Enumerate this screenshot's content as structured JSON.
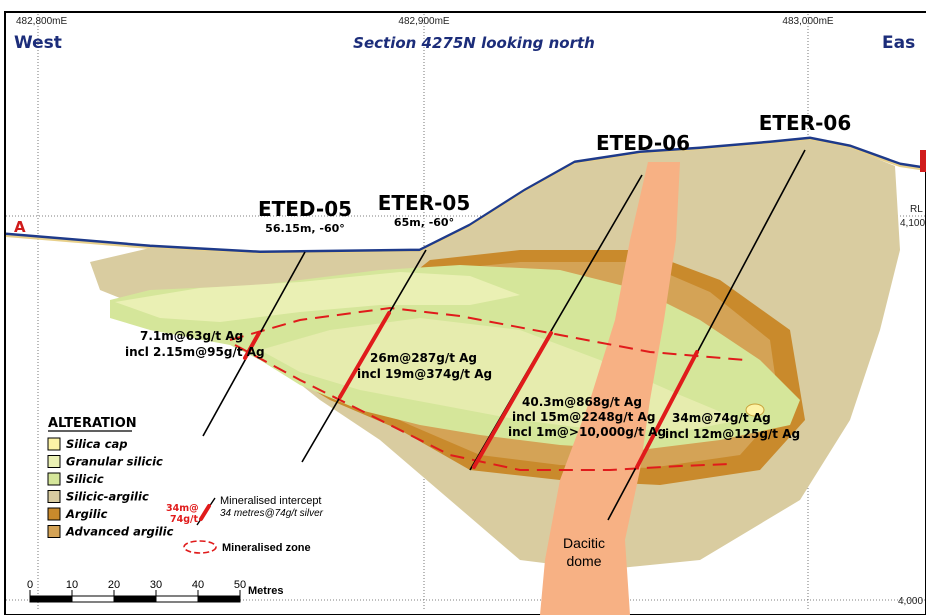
{
  "header": {
    "coord_left": "482,800mE",
    "coord_mid": "482,900mE",
    "coord_right": "483,000mE",
    "west": "West",
    "east": "Eas",
    "title": "Section 4275N looking north",
    "section_a": "A"
  },
  "rl": {
    "label": "RL",
    "upper": "4,100",
    "lower": "4,000"
  },
  "holes": [
    {
      "name": "ETED-05",
      "detail": "56.15m, -60°"
    },
    {
      "name": "ETER-05",
      "detail": "65m, -60°"
    },
    {
      "name": "ETED-06",
      "detail": ""
    },
    {
      "name": "ETER-06",
      "detail": ""
    }
  ],
  "intercepts": [
    {
      "line1": "7.1m@63g/t Ag",
      "line2": "incl 2.15m@95g/t Ag",
      "line3": ""
    },
    {
      "line1": "26m@287g/t Ag",
      "line2": "incl 19m@374g/t Ag",
      "line3": ""
    },
    {
      "line1": "40.3m@868g/t Ag",
      "line2": "incl 15m@2248g/t Ag",
      "line3": "incl 1m@>10,000g/t Ag"
    },
    {
      "line1": "34m@74g/t Ag",
      "line2": "incl 12m@125g/t Ag",
      "line3": ""
    }
  ],
  "dome_label": [
    "Dacitic",
    "dome"
  ],
  "legend": {
    "title": "ALTERATION",
    "items": [
      {
        "label": "Silica cap",
        "color": "#fdf3a6"
      },
      {
        "label": "Granular silicic",
        "color": "#eaf0b4"
      },
      {
        "label": "Silicic",
        "color": "#d5e69a"
      },
      {
        "label": "Silicic-argilic",
        "color": "#d9cca0"
      },
      {
        "label": "Argilic",
        "color": "#c98a2c"
      },
      {
        "label": "Advanced argilic",
        "color": "#d4a356"
      }
    ],
    "intercept_sample": [
      "34m@",
      "74g/t"
    ],
    "intercept_desc": [
      "Mineralised intercept",
      "34 metres@74g/t silver"
    ],
    "zone_desc": "Mineralised zone"
  },
  "scale": {
    "ticks": [
      "0",
      "10",
      "20",
      "30",
      "40",
      "50"
    ],
    "unit": "Metres"
  }
}
